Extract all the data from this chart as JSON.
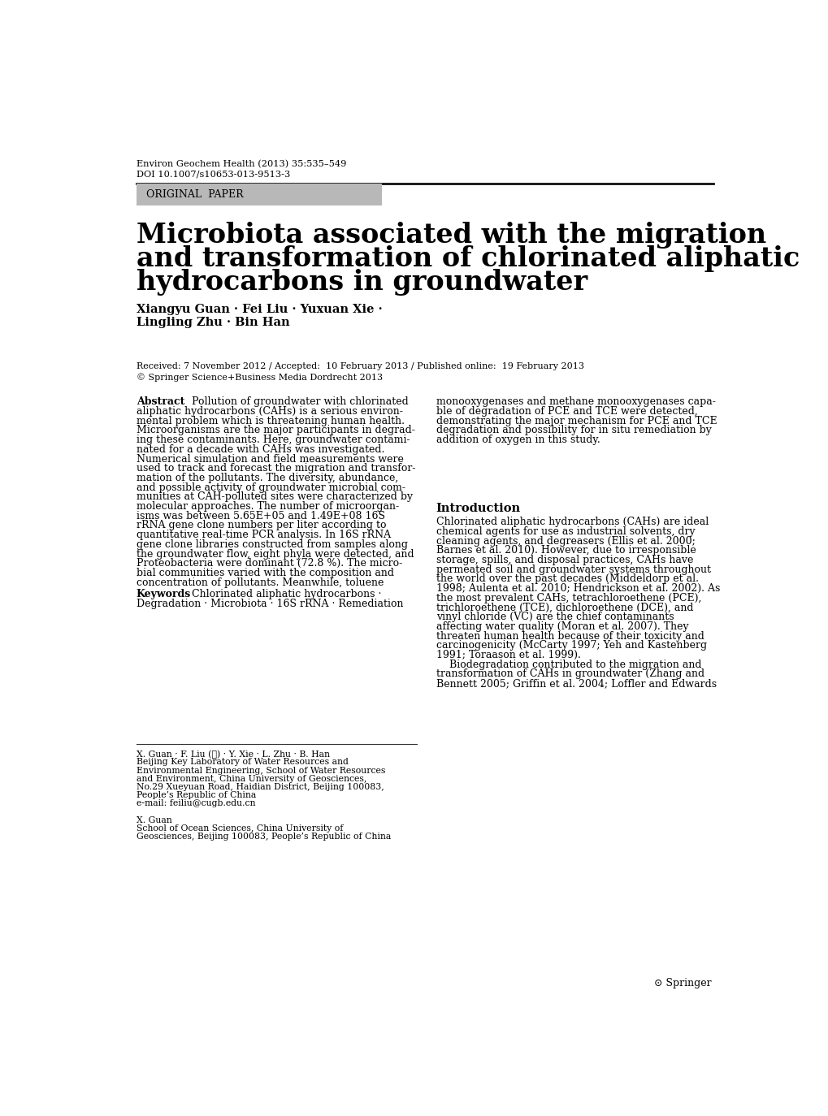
{
  "bg_color": "#ffffff",
  "journal_line1": "Environ Geochem Health (2013) 35:535–549",
  "journal_line2": "DOI 10.1007/s10653-013-9513-3",
  "original_paper_label": "ORIGINAL  PAPER",
  "original_paper_bg": "#b8b8b8",
  "title_line1": "Microbiota associated with the migration",
  "title_line2": "and transformation of chlorinated aliphatic",
  "title_line3": "hydrocarbons in groundwater",
  "authors_line1": "Xiangyu Guan · Fei Liu · Yuxuan Xie ·",
  "authors_line2": "Lingling Zhu · Bin Han",
  "received": "Received: 7 November 2012 / Accepted:  10 February 2013 / Published online:  19 February 2013",
  "copyright": "© Springer Science+Business Media Dordrecht 2013",
  "abstract_label": "Abstract",
  "abstract_col1_first": "Pollution of groundwater with chlorinated",
  "abstract_col1_rest": "aliphatic hydrocarbons (CAHs) is a serious environ-\nmental problem which is threatening human health.\nMicroorganisms are the major participants in degrad-\ning these contaminants. Here, groundwater contami-\nnated for a decade with CAHs was investigated.\nNumerical simulation and field measurements were\nused to track and forecast the migration and transfor-\nmation of the pollutants. The diversity, abundance,\nand possible activity of groundwater microbial com-\nmunities at CAH-polluted sites were characterized by\nmolecular approaches. The number of microorgan-\nisms was between 5.65E+05 and 1.49E+08 16S\nrRNA gene clone numbers per liter according to\nquantitative real-time PCR analysis. In 16S rRNA\ngene clone libraries constructed from samples along\nthe groundwater flow, eight phyla were detected, and\nProteobacteria were dominant (72.8 %). The micro-\nbial communities varied with the composition and\nconcentration of pollutants. Meanwhile, toluene",
  "abstract_col2": "monooxygenases and methane monooxygenases capa-\nble of degradation of PCE and TCE were detected,\ndemonstrating the major mechanism for PCE and TCE\ndegradation and possibility for in situ remediation by\naddition of oxygen in this study.",
  "keywords_label": "Keywords",
  "keywords_line1": "Chlorinated aliphatic hydrocarbons ·",
  "keywords_line2": "Degradation · Microbiota · 16S rRNA · Remediation",
  "intro_label": "Introduction",
  "intro_text": "Chlorinated aliphatic hydrocarbons (CAHs) are ideal\nchemical agents for use as industrial solvents, dry\ncleaning agents, and degreasers (Ellis et al. 2000;\nBarnes et al. 2010). However, due to irresponsible\nstorage, spills, and disposal practices, CAHs have\npermeated soil and groundwater systems throughout\nthe world over the past decades (Middeldorp et al.\n1998; Aulenta et al. 2010; Hendrickson et al. 2002). As\nthe most prevalent CAHs, tetrachloroethene (PCE),\ntrichloroethene (TCE), dichloroethene (DCE), and\nvinyl chloride (VC) are the chief contaminants\naffecting water quality (Moran et al. 2007). They\nthreaten human health because of their toxicity and\ncarcinogenicity (McCarty 1997; Yeh and Kastenberg\n1991; Toraason et al. 1999).\n    Biodegradation contributed to the migration and\ntransformation of CAHs in groundwater (Zhang and\nBennett 2005; Griffin et al. 2004; Loffler and Edwards",
  "footnote_lines": [
    "X. Guan · F. Liu (✉) · Y. Xie · L. Zhu · B. Han",
    "Beijing Key Laboratory of Water Resources and",
    "Environmental Engineering, School of Water Resources",
    "and Environment, China University of Geosciences,",
    "No.29 Xueyuan Road, Haidian District, Beijing 100083,",
    "People’s Republic of China",
    "e-mail: feiliu@cugb.edu.cn",
    "",
    "X. Guan",
    "School of Ocean Sciences, China University of",
    "Geosciences, Beijing 100083, People’s Republic of China"
  ],
  "springer_logo": "⊙ Springer",
  "text_color": "#000000",
  "link_color": "#1a0dab"
}
